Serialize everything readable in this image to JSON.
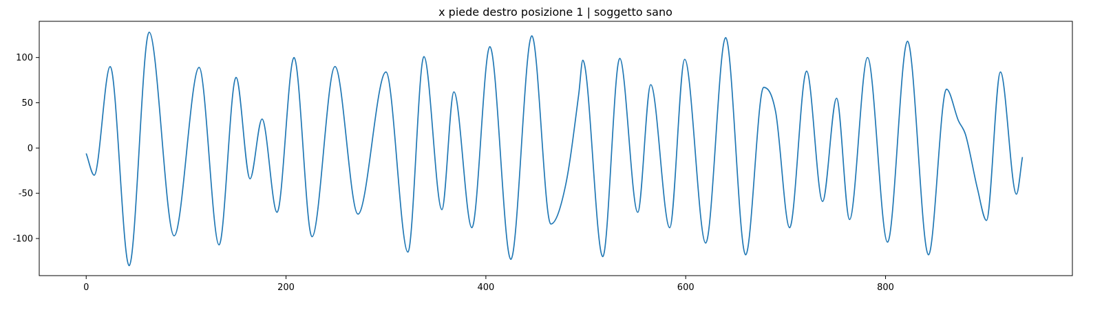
{
  "chart_data": {
    "type": "line",
    "title": "x piede destro posizione 1 | soggetto sano",
    "xlabel": "",
    "ylabel": "",
    "xlim": [
      -47,
      987
    ],
    "ylim": [
      -141,
      140
    ],
    "xticks": [
      0,
      200,
      400,
      600,
      800
    ],
    "xtick_labels": [
      "0",
      "200",
      "400",
      "600",
      "800"
    ],
    "yticks": [
      -100,
      -50,
      0,
      50,
      100
    ],
    "ytick_labels": [
      "-100",
      "-50",
      "0",
      "50",
      "100"
    ],
    "grid": false,
    "legend": "none",
    "series": [
      {
        "color": "#1f77b4",
        "points": [
          [
            0,
            -6
          ],
          [
            8,
            -30
          ],
          [
            24,
            90
          ],
          [
            43,
            -130
          ],
          [
            63,
            128
          ],
          [
            88,
            -97
          ],
          [
            113,
            89
          ],
          [
            133,
            -107
          ],
          [
            150,
            78
          ],
          [
            164,
            -34
          ],
          [
            176,
            32
          ],
          [
            191,
            -71
          ],
          [
            208,
            100
          ],
          [
            226,
            -98
          ],
          [
            249,
            90
          ],
          [
            272,
            -73
          ],
          [
            300,
            84
          ],
          [
            322,
            -115
          ],
          [
            338,
            101
          ],
          [
            356,
            -68
          ],
          [
            368,
            62
          ],
          [
            386,
            -88
          ],
          [
            404,
            112
          ],
          [
            425,
            -123
          ],
          [
            446,
            124
          ],
          [
            465,
            -84
          ],
          [
            480,
            -40
          ],
          [
            493,
            60
          ],
          [
            497,
            97
          ],
          [
            517,
            -120
          ],
          [
            534,
            99
          ],
          [
            552,
            -71
          ],
          [
            565,
            70
          ],
          [
            584,
            -88
          ],
          [
            599,
            98
          ],
          [
            620,
            -105
          ],
          [
            640,
            122
          ],
          [
            660,
            -118
          ],
          [
            678,
            67
          ],
          [
            690,
            40
          ],
          [
            704,
            -88
          ],
          [
            721,
            85
          ],
          [
            737,
            -59
          ],
          [
            751,
            55
          ],
          [
            764,
            -79
          ],
          [
            782,
            100
          ],
          [
            802,
            -104
          ],
          [
            822,
            118
          ],
          [
            843,
            -118
          ],
          [
            861,
            65
          ],
          [
            873,
            30
          ],
          [
            880,
            15
          ],
          [
            892,
            -45
          ],
          [
            901,
            -80
          ],
          [
            915,
            84
          ],
          [
            931,
            -51
          ],
          [
            937,
            -10
          ]
        ]
      }
    ]
  }
}
